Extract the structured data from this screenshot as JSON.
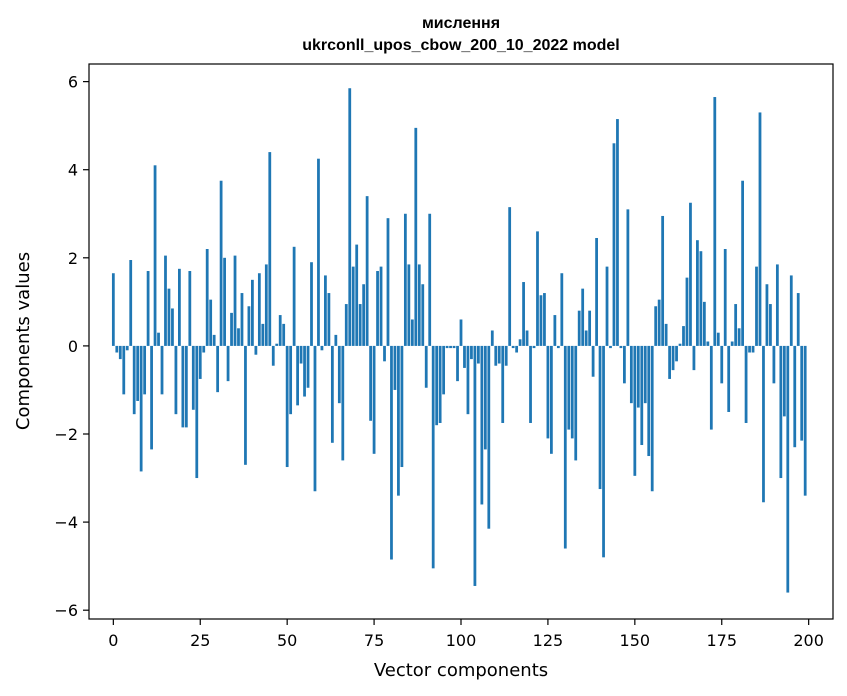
{
  "chart_data": {
    "type": "bar",
    "title": "мислення",
    "subtitle": "ukrconll_upos_cbow_200_10_2022 model",
    "xlabel": "Vector components",
    "ylabel": "Components values",
    "xlim": [
      -7,
      207
    ],
    "ylim": [
      -6.2,
      6.4
    ],
    "xticks": [
      0,
      25,
      50,
      75,
      100,
      125,
      150,
      175,
      200
    ],
    "yticks": [
      -6,
      -4,
      -2,
      0,
      2,
      4,
      6
    ],
    "xtick_labels": [
      "0",
      "25",
      "50",
      "75",
      "100",
      "125",
      "150",
      "175",
      "200"
    ],
    "ytick_labels": [
      "−6",
      "−4",
      "−2",
      "0",
      "2",
      "4",
      "6"
    ],
    "bar_color": "#1f77b4",
    "grid": false,
    "values": [
      1.65,
      -0.15,
      -0.3,
      -1.1,
      -0.1,
      1.95,
      -1.55,
      -1.25,
      -2.85,
      -1.1,
      1.7,
      -2.35,
      4.1,
      0.3,
      -1.1,
      2.05,
      1.3,
      0.85,
      -1.55,
      1.75,
      -1.85,
      -1.85,
      1.7,
      -1.45,
      -3.0,
      -0.75,
      -0.15,
      2.2,
      1.05,
      0.25,
      -1.05,
      3.75,
      2.0,
      -0.8,
      0.75,
      2.05,
      0.4,
      1.2,
      -2.7,
      0.9,
      1.5,
      -0.2,
      1.65,
      0.5,
      1.85,
      4.4,
      -0.45,
      0.05,
      0.7,
      0.5,
      -2.75,
      -1.55,
      2.25,
      -1.35,
      -0.4,
      -1.15,
      -0.95,
      1.9,
      -3.3,
      4.25,
      -0.1,
      1.6,
      1.2,
      -2.2,
      0.25,
      -1.3,
      -2.6,
      0.95,
      5.85,
      1.8,
      2.3,
      0.95,
      1.4,
      3.4,
      -1.7,
      -2.45,
      1.7,
      1.8,
      -0.35,
      2.9,
      -4.85,
      -1.0,
      -3.4,
      -2.75,
      3.0,
      1.85,
      0.6,
      4.95,
      1.85,
      1.4,
      -0.95,
      3.0,
      -5.05,
      -1.8,
      -1.75,
      -1.1,
      -0.05,
      -0.05,
      -0.05,
      -0.8,
      0.6,
      -0.5,
      -1.55,
      -0.3,
      -5.45,
      -0.4,
      -3.6,
      -2.35,
      -4.15,
      0.35,
      -0.45,
      -0.4,
      -1.75,
      -0.45,
      3.15,
      -0.05,
      -0.15,
      0.15,
      1.45,
      0.35,
      -1.75,
      -0.05,
      2.6,
      1.15,
      1.2,
      -2.1,
      -2.45,
      0.7,
      -0.05,
      1.65,
      -4.6,
      -1.9,
      -2.1,
      -2.6,
      0.8,
      1.3,
      0.35,
      0.8,
      -0.7,
      2.45,
      -3.25,
      -4.8,
      1.8,
      -0.05,
      4.6,
      5.15,
      -0.05,
      -0.85,
      3.1,
      -1.3,
      -2.95,
      -1.4,
      -2.25,
      -1.3,
      -2.5,
      -3.3,
      0.9,
      1.05,
      2.95,
      0.5,
      -0.75,
      -0.55,
      -0.35,
      0.05,
      0.45,
      1.55,
      3.25,
      -0.55,
      2.4,
      2.15,
      1.0,
      0.1,
      -1.9,
      5.65,
      0.3,
      -0.85,
      2.2,
      -1.5,
      0.1,
      0.95,
      0.4,
      3.75,
      -1.75,
      -0.15,
      -0.15,
      1.8,
      5.3,
      -3.55,
      1.4,
      0.95,
      -0.85,
      1.85,
      -3.0,
      -1.6,
      -5.6,
      1.6,
      -2.3,
      1.2,
      -2.15,
      -3.4
    ]
  }
}
